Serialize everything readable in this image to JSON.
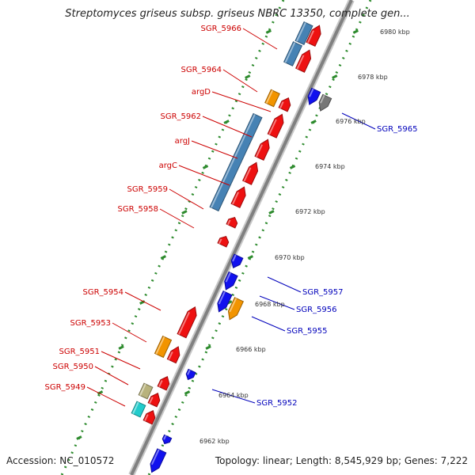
{
  "header": {
    "title": "Streptomyces griseus subsp. griseus NBRC 13350, complete gen..."
  },
  "footer": {
    "accession": "Accession: NC_010572",
    "topology": "Topology: linear; Length: 8,545,929 bp; Genes: 7,222"
  },
  "colors": {
    "backbone": "#808080",
    "tick_dots": "#2e8b2e",
    "label_forward": "#cc0000",
    "label_reverse": "#0000bb",
    "gene_red": "#ee1111",
    "gene_blue": "#1111ee",
    "gene_orange": "#f29400",
    "gene_steelblue": "#4682b4",
    "gene_olive": "#b8b27c",
    "gene_cyan": "#22cccc",
    "gene_gray": "#777777"
  },
  "kbp_ticks": [
    "6962 kbp",
    "6964 kbp",
    "6966 kbp",
    "6968 kbp",
    "6970 kbp",
    "6972 kbp",
    "6974 kbp",
    "6976 kbp",
    "6978 kbp",
    "6980 kbp"
  ],
  "labels_forward": [
    "SGR_5966",
    "SGR_5964",
    "argD",
    "SGR_5962",
    "argJ",
    "argC",
    "SGR_5959",
    "SGR_5958",
    "SGR_5954",
    "SGR_5953",
    "SGR_5951",
    "SGR_5950",
    "SGR_5949"
  ],
  "labels_reverse": [
    "SGR_5965",
    "SGR_5957",
    "SGR_5956",
    "SGR_5955",
    "SGR_5952"
  ],
  "genes": {
    "orange": "gene_orange",
    "olive": "gene_olive",
    "cyan": "gene_cyan",
    "steel": "gene_steelblue",
    "gray": "gene_gray",
    "red": "gene_red",
    "blue": "gene_blue"
  }
}
